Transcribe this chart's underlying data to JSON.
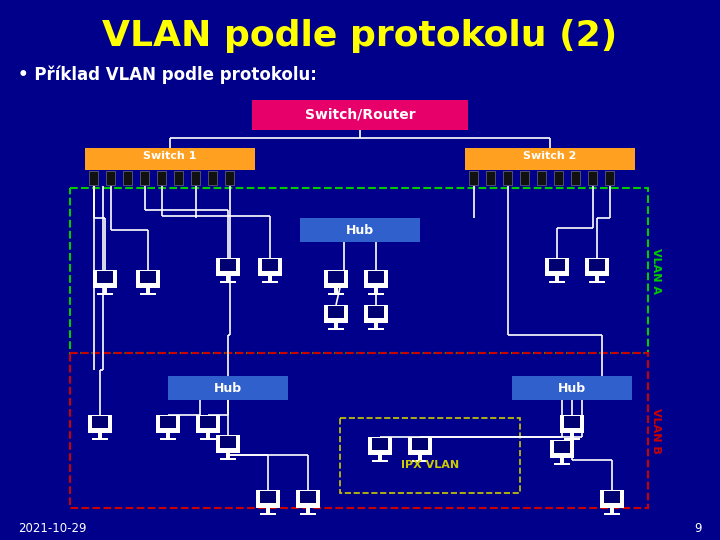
{
  "title": "VLAN podle protokolu (2)",
  "subtitle": "• Příklad VLAN podle protokolu:",
  "bg_color": "#00008B",
  "title_color": "#FFFF00",
  "subtitle_color": "#FFFFFF",
  "date_text": "2021-10-29",
  "page_num": "9",
  "switch_router_label": "Switch/Router",
  "switch_router_color": "#E8006A",
  "switch1_label": "Switch 1",
  "switch2_label": "Switch 2",
  "switch_color": "#FFA020",
  "hub_color": "#3060CC",
  "hub_label": "Hub",
  "vlan_a_color": "#00CC00",
  "vlan_b_color": "#CC0000",
  "ipx_vlan_color": "#CCCC00",
  "ipx_vlan_label": "IPX VLAN",
  "port_color": "#111111",
  "line_color": "#FFFFFF"
}
